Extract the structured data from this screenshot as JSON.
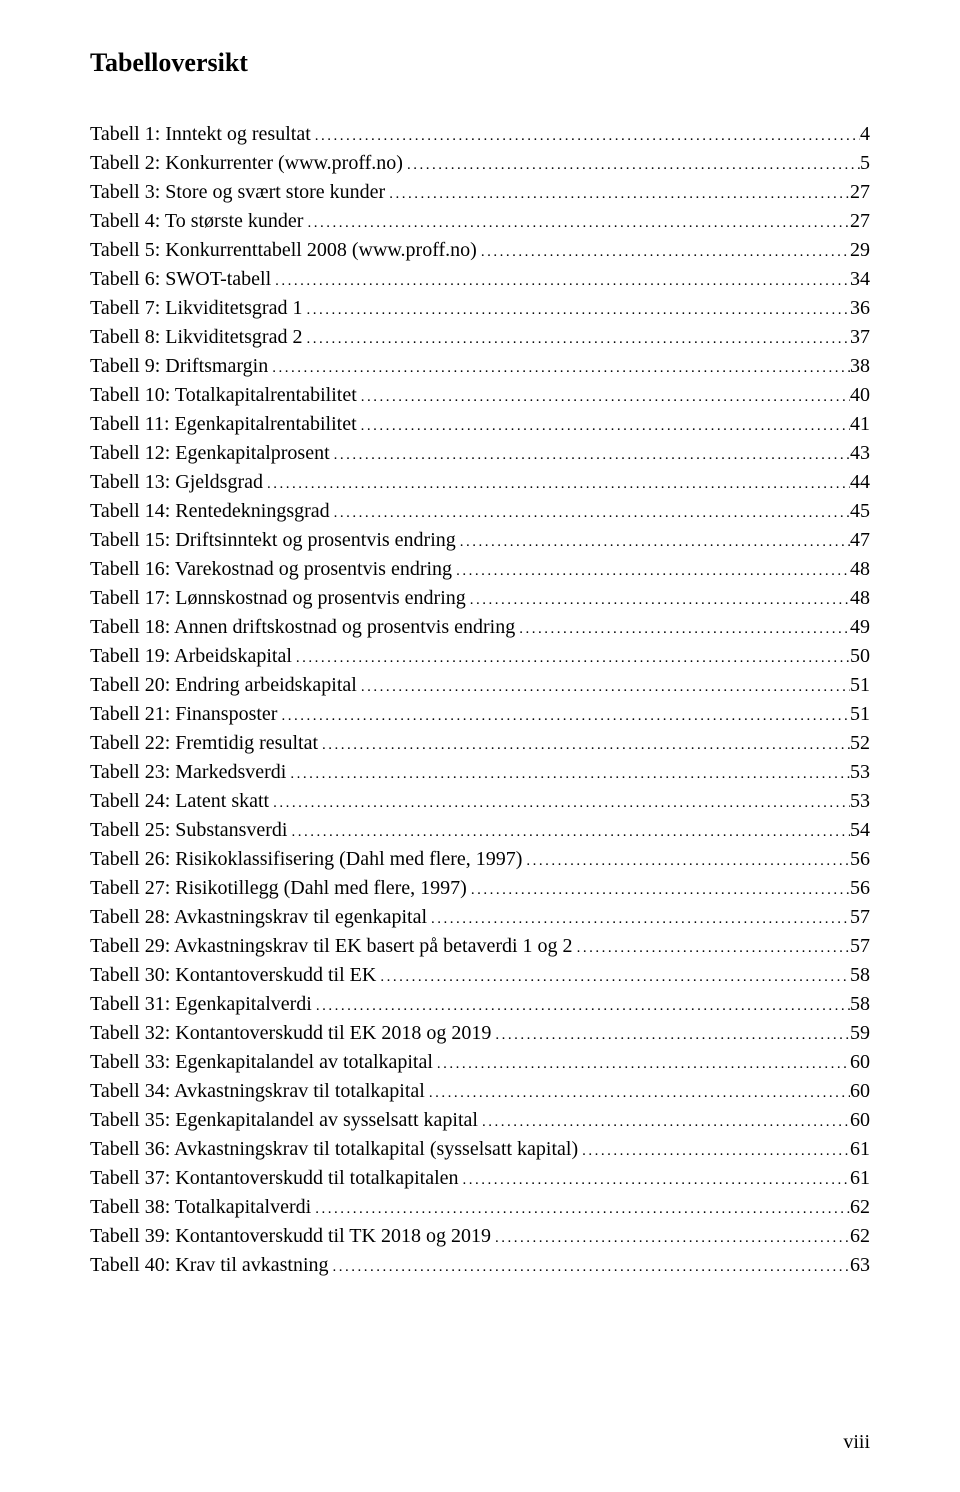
{
  "title": "Tabelloversikt",
  "title_fontsize": 26,
  "body_fontsize": 20,
  "text_color": "#000000",
  "background_color": "#ffffff",
  "font_family": "Times New Roman",
  "page_number": "viii",
  "entries": [
    {
      "label": "Tabell 1: Inntekt og resultat",
      "page": "4"
    },
    {
      "label": "Tabell 2: Konkurrenter (www.proff.no)",
      "page": "5"
    },
    {
      "label": "Tabell 3: Store og svært store kunder",
      "page": "27"
    },
    {
      "label": "Tabell 4: To største kunder",
      "page": "27"
    },
    {
      "label": "Tabell 5: Konkurrenttabell 2008 (www.proff.no)",
      "page": "29"
    },
    {
      "label": "Tabell 6: SWOT-tabell",
      "page": "34"
    },
    {
      "label": "Tabell 7: Likviditetsgrad 1",
      "page": "36"
    },
    {
      "label": "Tabell 8: Likviditetsgrad 2",
      "page": "37"
    },
    {
      "label": "Tabell 9: Driftsmargin",
      "page": "38"
    },
    {
      "label": "Tabell 10: Totalkapitalrentabilitet",
      "page": "40"
    },
    {
      "label": "Tabell 11: Egenkapitalrentabilitet",
      "page": "41"
    },
    {
      "label": "Tabell 12: Egenkapitalprosent",
      "page": "43"
    },
    {
      "label": "Tabell 13: Gjeldsgrad",
      "page": "44"
    },
    {
      "label": "Tabell 14: Rentedekningsgrad",
      "page": "45"
    },
    {
      "label": "Tabell 15: Driftsinntekt og prosentvis endring",
      "page": "47"
    },
    {
      "label": "Tabell 16: Varekostnad og prosentvis endring",
      "page": "48"
    },
    {
      "label": "Tabell 17: Lønnskostnad og prosentvis endring",
      "page": "48"
    },
    {
      "label": "Tabell 18: Annen driftskostnad og prosentvis endring",
      "page": "49"
    },
    {
      "label": "Tabell 19: Arbeidskapital",
      "page": "50"
    },
    {
      "label": "Tabell 20: Endring arbeidskapital",
      "page": "51"
    },
    {
      "label": "Tabell 21: Finansposter",
      "page": "51"
    },
    {
      "label": "Tabell 22: Fremtidig resultat",
      "page": "52"
    },
    {
      "label": "Tabell 23: Markedsverdi",
      "page": "53"
    },
    {
      "label": "Tabell 24: Latent skatt",
      "page": "53"
    },
    {
      "label": "Tabell 25: Substansverdi",
      "page": "54"
    },
    {
      "label": "Tabell 26: Risikoklassifisering (Dahl med flere, 1997)",
      "page": "56"
    },
    {
      "label": "Tabell 27: Risikotillegg (Dahl med flere, 1997)",
      "page": "56"
    },
    {
      "label": "Tabell 28: Avkastningskrav til egenkapital",
      "page": "57"
    },
    {
      "label": "Tabell 29: Avkastningskrav til EK basert på betaverdi 1 og 2",
      "page": "57"
    },
    {
      "label": "Tabell 30: Kontantoverskudd til EK",
      "page": "58"
    },
    {
      "label": "Tabell 31: Egenkapitalverdi",
      "page": "58"
    },
    {
      "label": "Tabell 32: Kontantoverskudd til EK 2018 og 2019",
      "page": "59"
    },
    {
      "label": "Tabell 33: Egenkapitalandel av totalkapital",
      "page": "60"
    },
    {
      "label": "Tabell 34: Avkastningskrav til totalkapital",
      "page": "60"
    },
    {
      "label": "Tabell 35: Egenkapitalandel av sysselsatt kapital",
      "page": "60"
    },
    {
      "label": "Tabell 36: Avkastningskrav til totalkapital (sysselsatt kapital)",
      "page": "61"
    },
    {
      "label": "Tabell 37: Kontantoverskudd til totalkapitalen",
      "page": "61"
    },
    {
      "label": "Tabell 38: Totalkapitalverdi",
      "page": "62"
    },
    {
      "label": "Tabell 39: Kontantoverskudd til TK 2018 og 2019",
      "page": "62"
    },
    {
      "label": "Tabell 40: Krav til avkastning",
      "page": "63"
    }
  ]
}
